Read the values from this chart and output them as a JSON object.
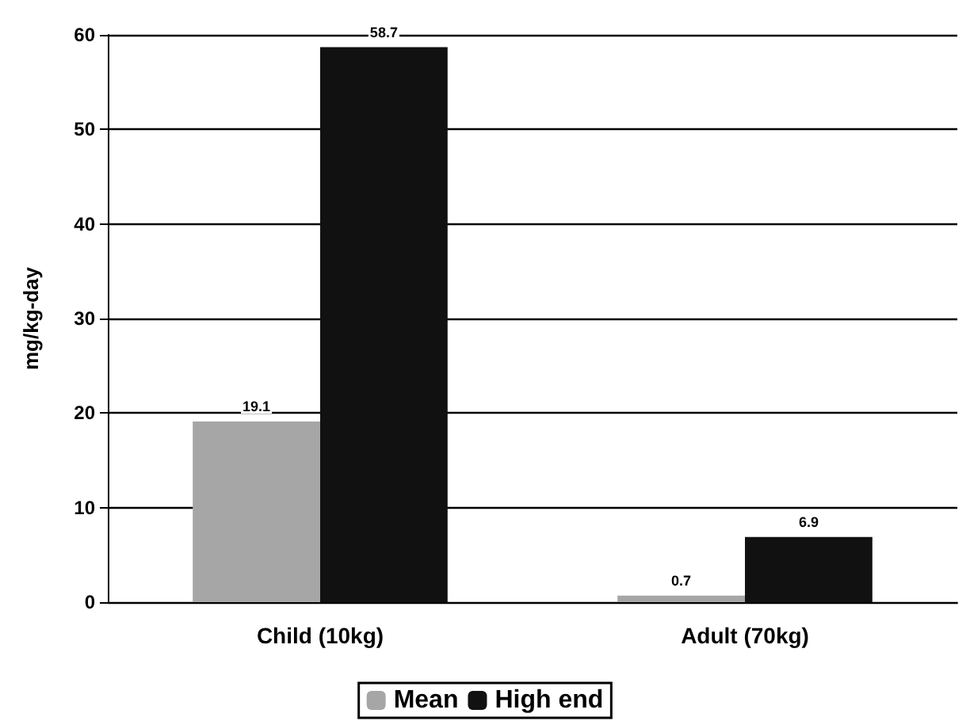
{
  "chart_data": {
    "type": "bar",
    "ylabel": "mg/kg-day",
    "categories": [
      "Child (10kg)",
      "Adult (70kg)"
    ],
    "series": [
      {
        "name": "Mean",
        "color": "#a6a6a6",
        "values": [
          19.1,
          0.7
        ]
      },
      {
        "name": "High end",
        "color": "#111111",
        "values": [
          58.7,
          6.9
        ]
      }
    ],
    "ylim": [
      0,
      60
    ],
    "yticks": [
      0,
      10,
      20,
      30,
      40,
      50,
      60
    ],
    "grid": "y",
    "legend": "bottom",
    "data_labels": true
  }
}
